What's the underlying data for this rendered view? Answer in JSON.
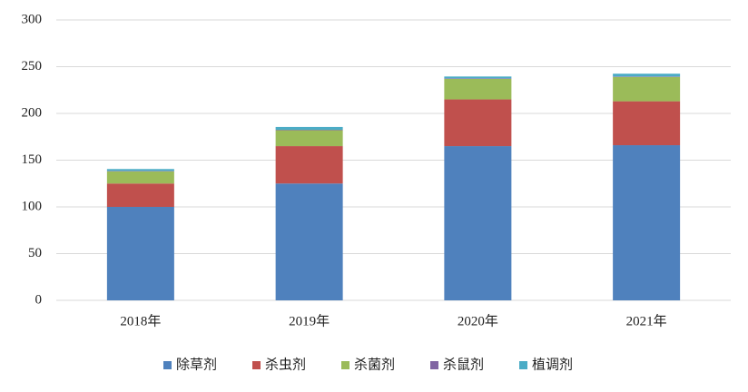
{
  "chart_data": {
    "type": "stacked_bar",
    "categories": [
      "2018年",
      "2019年",
      "2020年",
      "2021年"
    ],
    "series": [
      {
        "name": "除草剂",
        "color": "#4f81bd",
        "values": [
          100,
          125,
          165,
          166
        ]
      },
      {
        "name": "杀虫剂",
        "color": "#c0504d",
        "values": [
          25,
          40,
          50,
          47
        ]
      },
      {
        "name": "杀菌剂",
        "color": "#9bbb59",
        "values": [
          13,
          17,
          22,
          26
        ]
      },
      {
        "name": "杀鼠剂",
        "color": "#8064a2",
        "values": [
          0.5,
          0.5,
          0.5,
          0.5
        ]
      },
      {
        "name": "植调剂",
        "color": "#4bacc6",
        "values": [
          2,
          3,
          2,
          3
        ]
      }
    ],
    "ylim": [
      0,
      300
    ],
    "yticks": [
      0,
      50,
      100,
      150,
      200,
      250,
      300
    ],
    "grid": true,
    "legend": "bottom"
  }
}
